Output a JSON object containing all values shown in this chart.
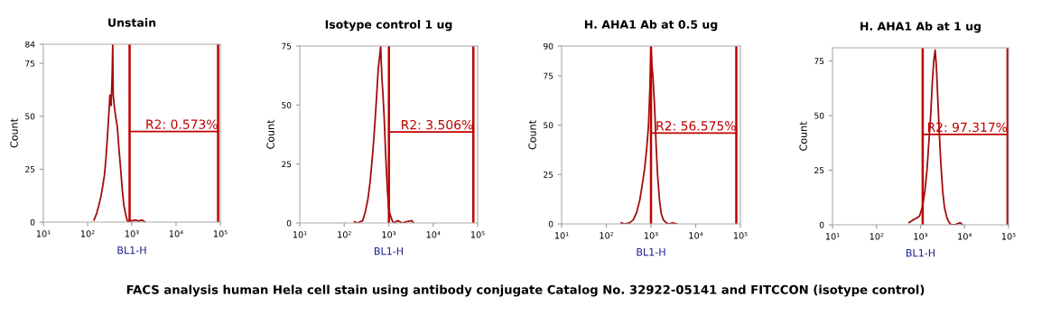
{
  "chart_data": [
    {
      "type": "line",
      "title": "Unstain",
      "xlabel": "BL1-H",
      "ylabel": "Count",
      "log": "x",
      "xlim": [
        10,
        100000
      ],
      "ylim": [
        0,
        84
      ],
      "xticks": [
        {
          "value": 10,
          "label": "10¹"
        },
        {
          "value": 100,
          "label": "10²"
        },
        {
          "value": 1000,
          "label": "10³"
        },
        {
          "value": 10000,
          "label": "10⁴"
        },
        {
          "value": 100000,
          "label": "10⁵"
        }
      ],
      "yticks": [
        0,
        25,
        50,
        75,
        84
      ],
      "grid": false,
      "series": [
        {
          "color": "#a30d0d",
          "x": [
            140,
            160,
            180,
            200,
            220,
            240,
            260,
            280,
            300,
            320,
            340,
            360,
            370,
            380,
            400,
            430,
            470,
            510,
            560,
            610,
            660,
            720,
            780,
            830,
            900,
            1000,
            1200,
            1400,
            1700,
            2000
          ],
          "values": [
            1,
            4,
            8,
            12,
            17,
            22,
            30,
            40,
            50,
            60,
            55,
            70,
            84,
            60,
            55,
            50,
            45,
            35,
            25,
            15,
            8,
            4,
            1,
            0,
            1,
            0.5,
            1,
            0.5,
            1,
            0
          ]
        },
        {
          "type": "line",
          "color": "#c00000",
          "x": [
            890,
            89000
          ],
          "values": [
            42.8,
            42.8
          ]
        }
      ],
      "ref_lines": [
        {
          "axis": "x",
          "value": 890,
          "color": "#c00000"
        },
        {
          "axis": "x",
          "value": 89000,
          "color": "#c00000"
        }
      ],
      "annotations": [
        {
          "text": "R2: 0.573%",
          "x": 89000,
          "y": 42.8
        },
        "FACS analysis human Hela cell stain using antibody conjugate Catalog No. 32922-05141 and FITCCON (isotype control)"
      ]
    },
    {
      "type": "line",
      "title": "Isotype control 1 ug",
      "xlabel": "BL1-H",
      "ylabel": "Count",
      "log": "x",
      "xlim": [
        10,
        100000
      ],
      "ylim": [
        0,
        75
      ],
      "xticks": [
        {
          "value": 10,
          "label": "10¹"
        },
        {
          "value": 100,
          "label": "10²"
        },
        {
          "value": 1000,
          "label": "10³"
        },
        {
          "value": 10000,
          "label": "10⁴"
        },
        {
          "value": 100000,
          "label": "10⁵"
        }
      ],
      "yticks": [
        0,
        25,
        50,
        75
      ],
      "grid": false,
      "series": [
        {
          "color": "#a30d0d",
          "x": [
            170,
            200,
            260,
            300,
            340,
            380,
            420,
            460,
            500,
            540,
            580,
            620,
            660,
            700,
            740,
            790,
            850,
            900,
            950,
            1000,
            1100,
            1200,
            1300,
            1600,
            2000,
            2500,
            3300,
            3600
          ],
          "values": [
            0.5,
            0,
            1,
            5,
            10,
            17,
            26,
            35,
            45,
            55,
            65,
            70,
            75,
            62,
            55,
            45,
            30,
            20,
            12,
            6,
            3,
            1,
            0,
            1,
            0,
            0.5,
            1,
            0
          ]
        },
        {
          "type": "line",
          "color": "#c00000",
          "x": [
            1010,
            80000
          ],
          "values": [
            38.6,
            38.6
          ]
        }
      ],
      "ref_lines": [
        {
          "axis": "x",
          "value": 1010,
          "color": "#c00000"
        },
        {
          "axis": "x",
          "value": 80000,
          "color": "#c00000"
        }
      ],
      "annotations": [
        {
          "text": "R2: 3.506%",
          "x": 80000,
          "y": 38.6
        }
      ]
    },
    {
      "type": "line",
      "title": "H. AHA1 Ab at 0.5 ug",
      "xlabel": "BL1-H",
      "ylabel": "Count",
      "log": "x",
      "xlim": [
        10,
        100000
      ],
      "ylim": [
        0,
        90
      ],
      "xticks": [
        {
          "value": 10,
          "label": "10¹"
        },
        {
          "value": 100,
          "label": "10²"
        },
        {
          "value": 1000,
          "label": "10³"
        },
        {
          "value": 10000,
          "label": "10⁴"
        },
        {
          "value": 100000,
          "label": "10⁵"
        }
      ],
      "yticks": [
        0,
        25,
        50,
        75,
        90
      ],
      "grid": false,
      "series": [
        {
          "color": "#a30d0d",
          "x": [
            215,
            260,
            330,
            400,
            480,
            560,
            640,
            720,
            800,
            880,
            950,
            1000,
            1050,
            1100,
            1200,
            1300,
            1400,
            1550,
            1700,
            1900,
            2200,
            2600,
            3000,
            3800
          ],
          "values": [
            0.5,
            0,
            0.5,
            2,
            6,
            12,
            20,
            28,
            38,
            50,
            70,
            90,
            80,
            75,
            60,
            40,
            25,
            12,
            5,
            2,
            0.5,
            0,
            0.5,
            0
          ]
        },
        {
          "type": "line",
          "color": "#c00000",
          "x": [
            1000,
            81000
          ],
          "values": [
            46,
            46
          ]
        }
      ],
      "ref_lines": [
        {
          "axis": "x",
          "value": 1000,
          "color": "#c00000"
        },
        {
          "axis": "x",
          "value": 81000,
          "color": "#c00000"
        }
      ],
      "annotations": [
        {
          "text": "R2: 56.575%",
          "x": 81000,
          "y": 46
        }
      ]
    },
    {
      "type": "line",
      "title": "H. AHA1 Ab at 1 ug",
      "xlabel": "BL1-H",
      "ylabel": "Count",
      "log": "x",
      "xlim": [
        10,
        100000
      ],
      "ylim": [
        0,
        81
      ],
      "xticks": [
        {
          "value": 10,
          "label": "10¹"
        },
        {
          "value": 100,
          "label": "10²"
        },
        {
          "value": 1000,
          "label": "10³"
        },
        {
          "value": 10000,
          "label": "10⁴"
        },
        {
          "value": 100000,
          "label": "10⁵"
        }
      ],
      "yticks": [
        0,
        25,
        50,
        75
      ],
      "grid": false,
      "series": [
        {
          "color": "#a30d0d",
          "x": [
            550,
            650,
            800,
            950,
            1100,
            1250,
            1400,
            1550,
            1700,
            1850,
            2000,
            2150,
            2300,
            2500,
            2700,
            2900,
            3200,
            3500,
            4000,
            4500,
            5000,
            6000,
            8000,
            9000
          ],
          "values": [
            1,
            2,
            3,
            4,
            8,
            15,
            25,
            38,
            50,
            65,
            75,
            80,
            72,
            55,
            40,
            28,
            15,
            8,
            3,
            1,
            0,
            0,
            1,
            0
          ]
        },
        {
          "type": "line",
          "color": "#c00000",
          "x": [
            1120,
            95000
          ],
          "values": [
            41.4,
            41.4
          ]
        }
      ],
      "ref_lines": [
        {
          "axis": "x",
          "value": 1120,
          "color": "#c00000"
        },
        {
          "axis": "x",
          "value": 95000,
          "color": "#c00000"
        }
      ],
      "annotations": [
        {
          "text": "R2: 97.317%",
          "x": 95000,
          "y": 41.4
        }
      ]
    }
  ]
}
